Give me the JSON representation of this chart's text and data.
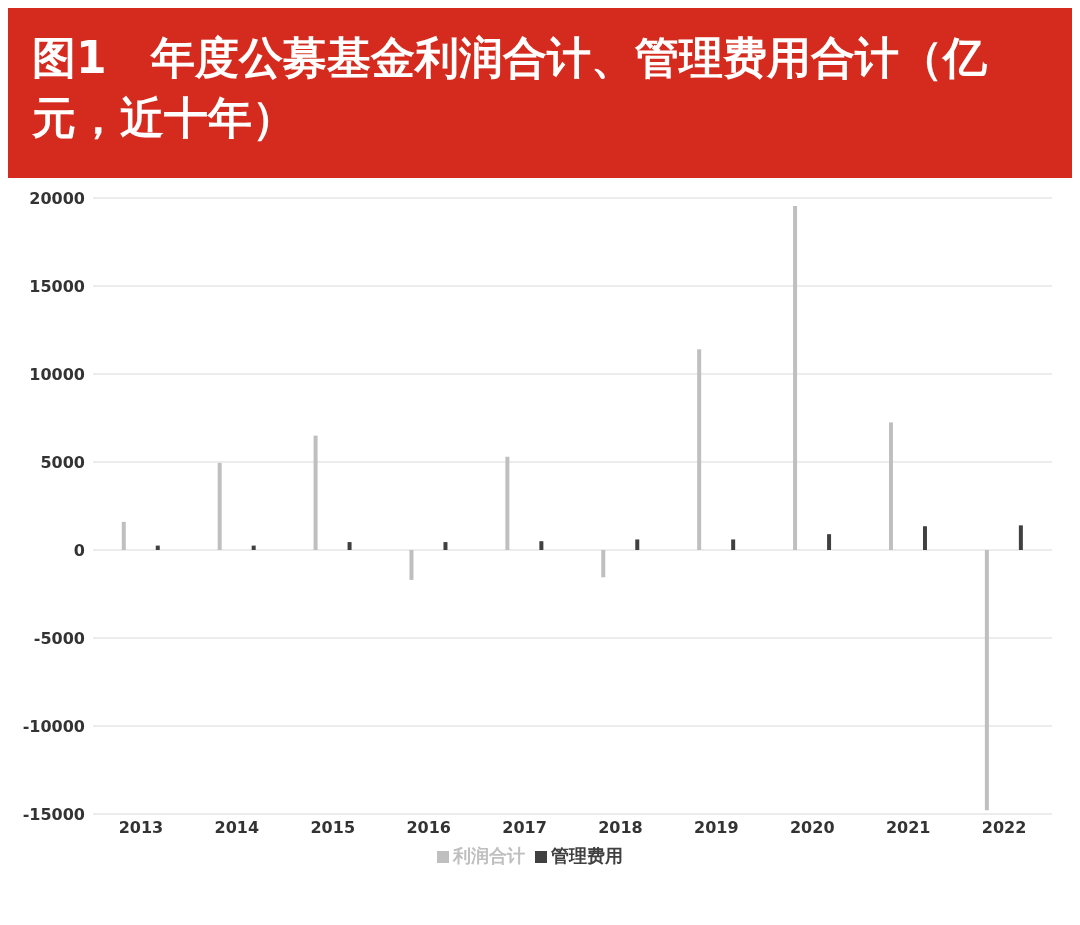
{
  "chart_data": {
    "type": "bar",
    "title": "图1　年度公募基金利润合计、管理费用合计（亿元，近十年）",
    "categories": [
      "2013",
      "2014",
      "2015",
      "2016",
      "2017",
      "2018",
      "2019",
      "2020",
      "2021",
      "2022"
    ],
    "series": [
      {
        "name": "利润合计",
        "color": "#bfbfbf",
        "values": [
          1600,
          4950,
          6500,
          -1700,
          5300,
          -1550,
          11400,
          19550,
          7250,
          -14780
        ]
      },
      {
        "name": "管理费用",
        "color": "#404040",
        "values": [
          250,
          250,
          450,
          450,
          500,
          600,
          600,
          900,
          1350,
          1400
        ]
      }
    ],
    "ylim": [
      -15000,
      20000
    ],
    "yticks": [
      -15000,
      -10000,
      -5000,
      0,
      5000,
      10000,
      15000,
      20000
    ],
    "grid": "y",
    "legend": "bottom"
  }
}
